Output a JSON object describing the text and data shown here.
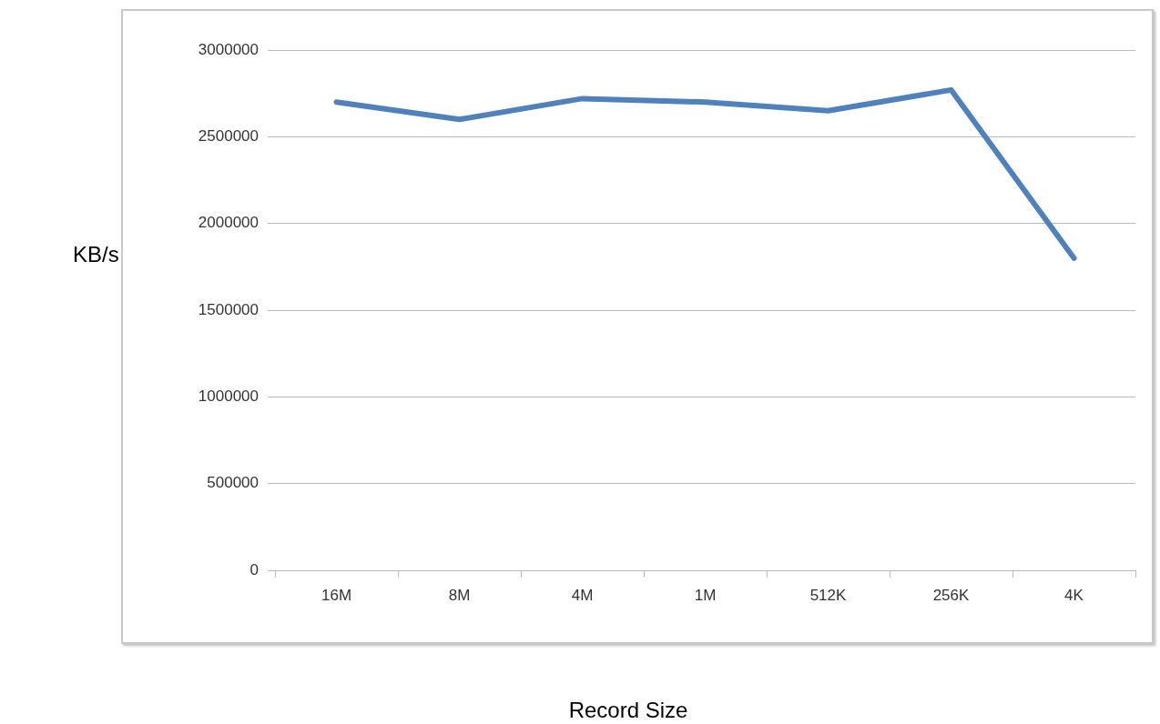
{
  "chart_data": {
    "type": "line",
    "xlabel": "Record Size",
    "ylabel": "KB/s",
    "categories": [
      "16M",
      "8M",
      "4M",
      "1M",
      "512K",
      "256K",
      "4K"
    ],
    "values": [
      2700000,
      2600000,
      2720000,
      2700000,
      2650000,
      2770000,
      1800000
    ],
    "color": "#4f81bd",
    "marker": "none",
    "line_style": "solid",
    "ylim": [
      0,
      3000000
    ],
    "yticks": [
      0,
      500000,
      1000000,
      1500000,
      2000000,
      2500000,
      3000000
    ],
    "grid": "y"
  }
}
